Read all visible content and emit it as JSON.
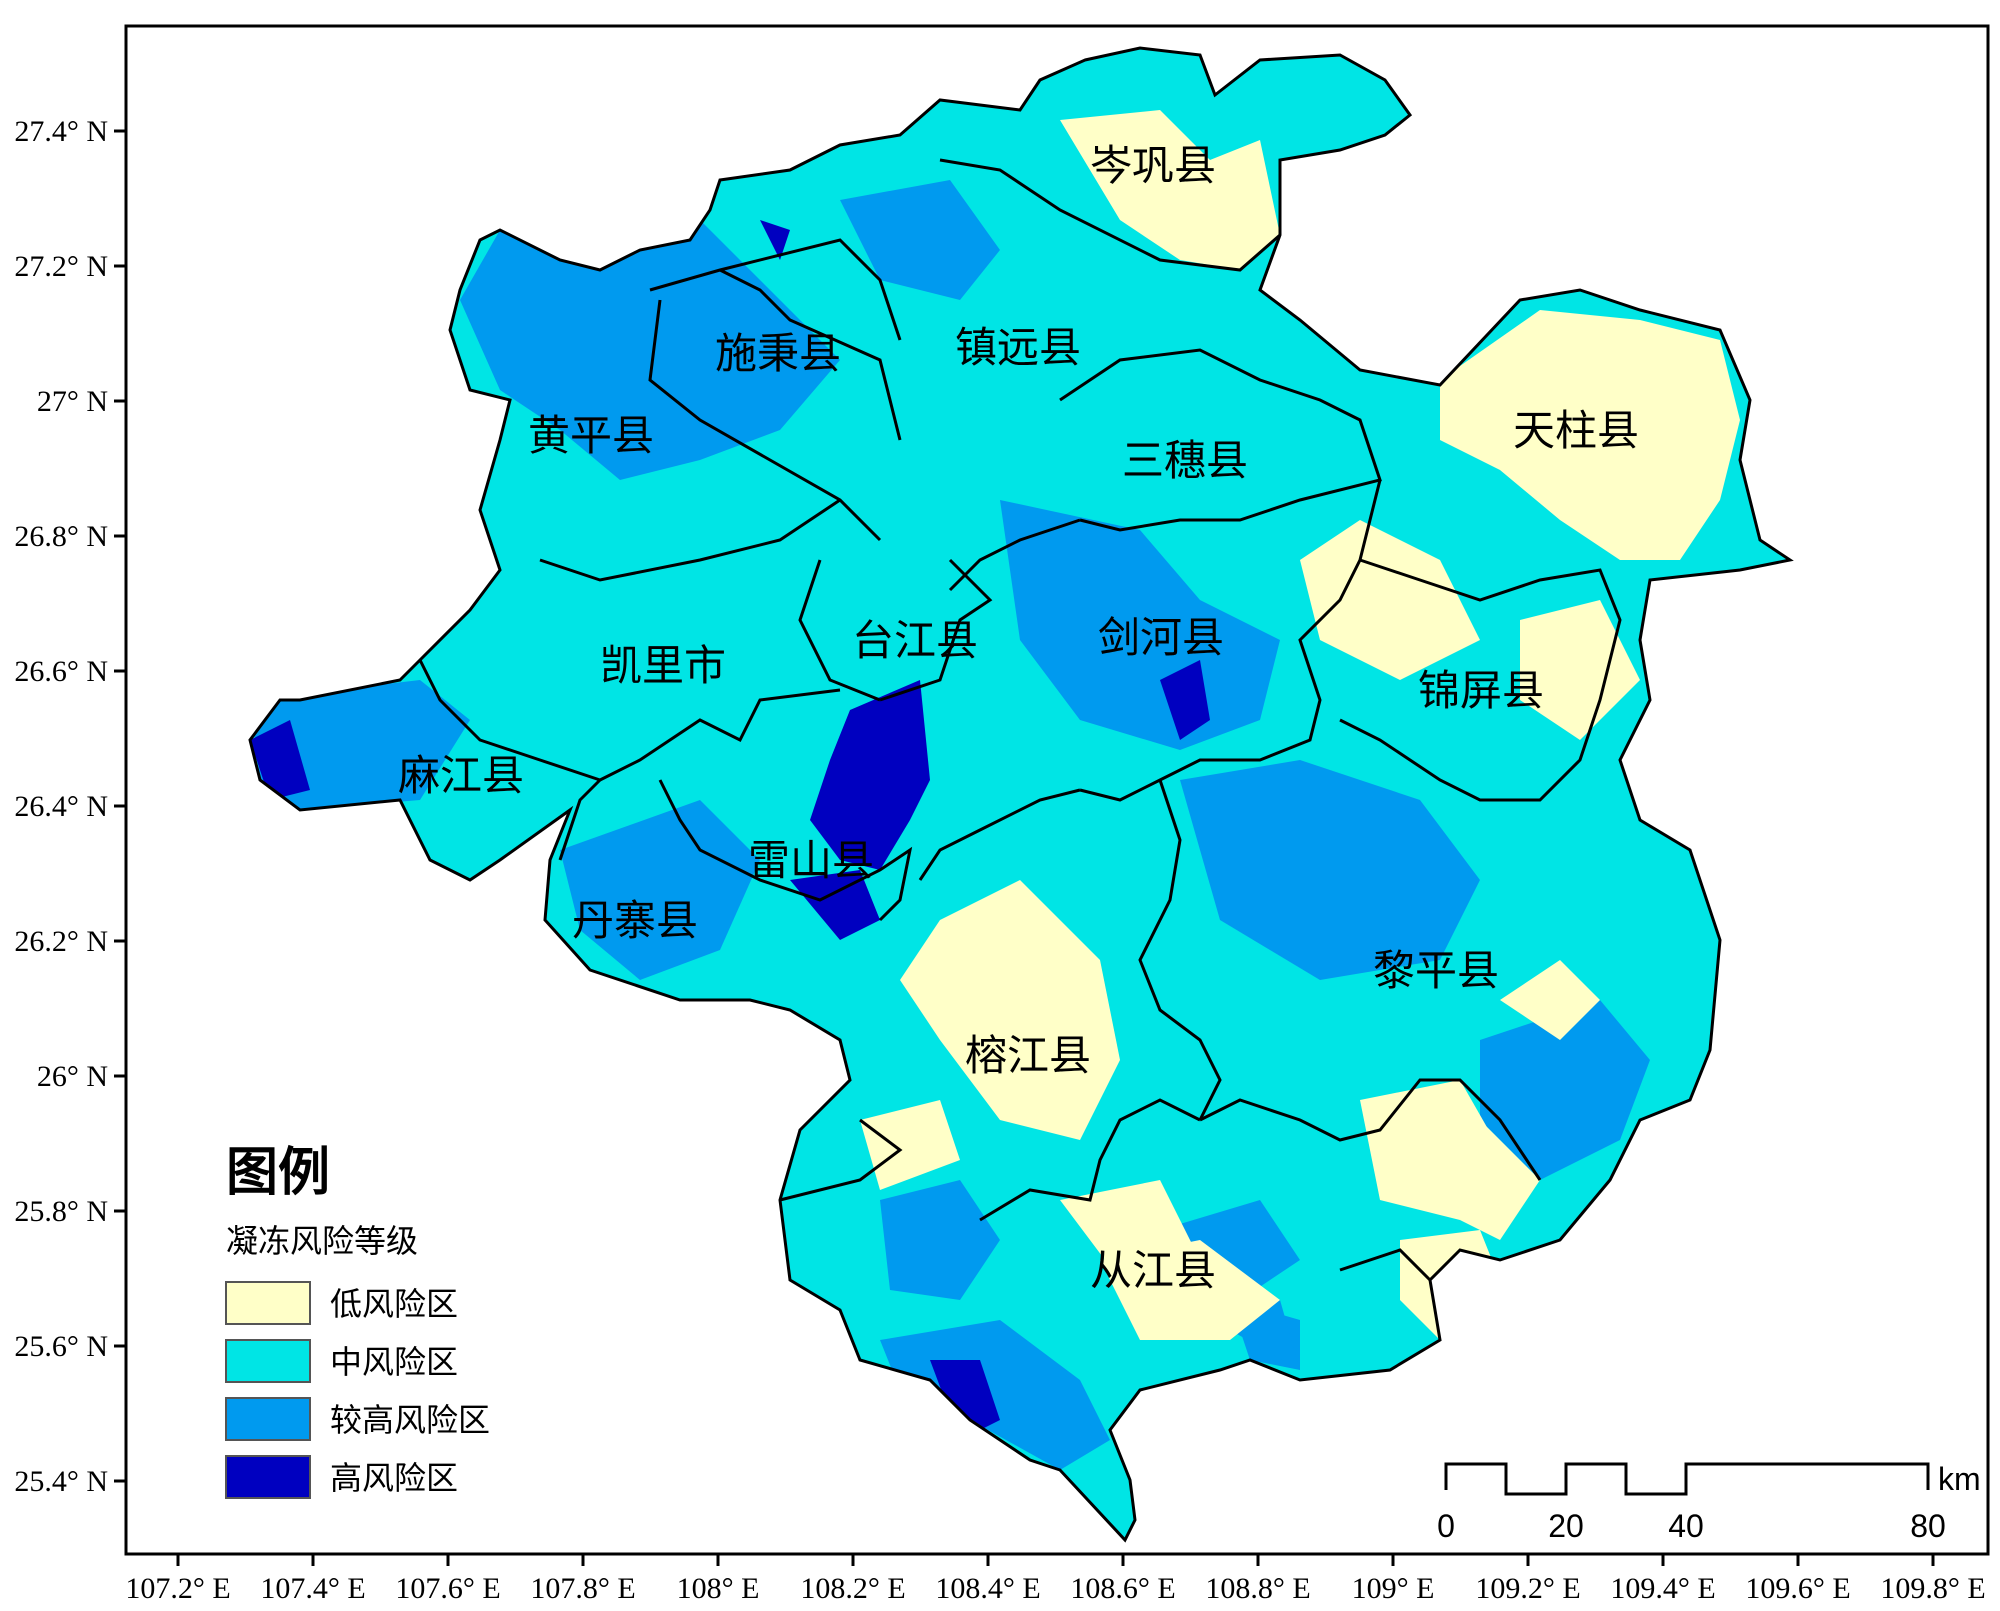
{
  "colors": {
    "low": "#ffffc8",
    "medium": "#00e5e5",
    "higher": "#009aef",
    "high": "#0000c0",
    "border": "#000000"
  },
  "axes": {
    "lat_labels": [
      "27.4° N",
      "27.2° N",
      "27° N",
      "26.8° N",
      "26.6° N",
      "26.4° N",
      "26.2° N",
      "26° N",
      "25.8° N",
      "25.6° N",
      "25.4° N"
    ],
    "lon_labels": [
      "107.2° E",
      "107.4° E",
      "107.6° E",
      "107.8° E",
      "108° E",
      "108.2° E",
      "108.4° E",
      "108.6° E",
      "108.8° E",
      "109° E",
      "109.2° E",
      "109.4° E",
      "109.6° E",
      "109.8° E"
    ]
  },
  "counties": [
    {
      "name": "岑巩县"
    },
    {
      "name": "施秉县"
    },
    {
      "name": "镇远县"
    },
    {
      "name": "黄平县"
    },
    {
      "name": "三穗县"
    },
    {
      "name": "天柱县"
    },
    {
      "name": "凯里市"
    },
    {
      "name": "台江县"
    },
    {
      "name": "剑河县"
    },
    {
      "name": "锦屏县"
    },
    {
      "name": "麻江县"
    },
    {
      "name": "雷山县"
    },
    {
      "name": "丹寨县"
    },
    {
      "name": "黎平县"
    },
    {
      "name": "榕江县"
    },
    {
      "name": "从江县"
    }
  ],
  "legend": {
    "title": "图例",
    "subtitle": "凝冻风险等级",
    "items": [
      {
        "label": "低风险区",
        "color": "#ffffc8"
      },
      {
        "label": "中风险区",
        "color": "#00e5e5"
      },
      {
        "label": "较高风险区",
        "color": "#009aef"
      },
      {
        "label": "高风险区",
        "color": "#0000c0"
      }
    ]
  },
  "scale_bar": {
    "ticks": [
      "0",
      "20",
      "40",
      "80"
    ],
    "unit": "km"
  }
}
